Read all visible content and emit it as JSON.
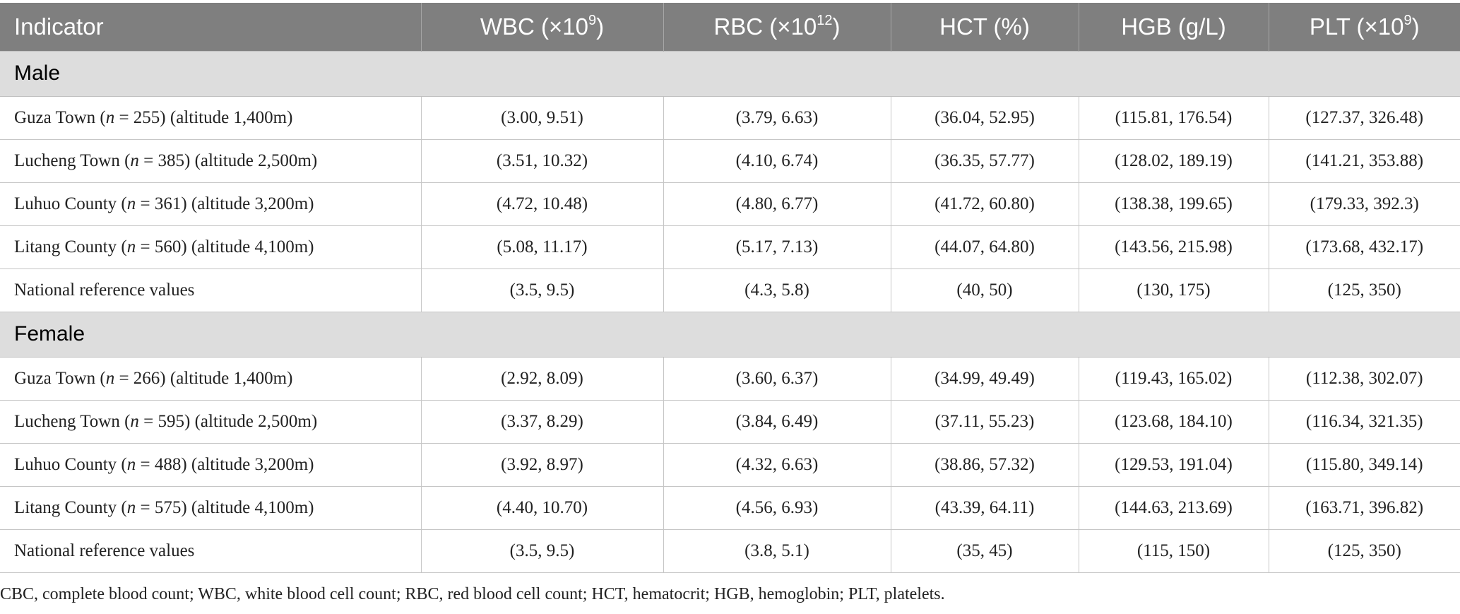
{
  "table": {
    "headers": {
      "indicator": "Indicator",
      "wbc_text": "WBC (×10",
      "wbc_sup": "9",
      "wbc_end": ")",
      "rbc_text": "RBC (×10",
      "rbc_sup": "12",
      "rbc_end": ")",
      "hct": "HCT (%)",
      "hgb": "HGB (g/L)",
      "plt_text": "PLT (×10",
      "plt_sup": "9",
      "plt_end": ")"
    },
    "sections": [
      {
        "label": "Male",
        "rows": [
          {
            "place": "Guza Town (",
            "n": "n",
            "rest": " = 255) (altitude 1,400m)",
            "wbc": "(3.00, 9.51)",
            "rbc": "(3.79, 6.63)",
            "hct": "(36.04, 52.95)",
            "hgb": "(115.81, 176.54)",
            "plt": "(127.37, 326.48)"
          },
          {
            "place": "Lucheng Town (",
            "n": "n",
            "rest": " = 385) (altitude 2,500m)",
            "wbc": "(3.51, 10.32)",
            "rbc": "(4.10, 6.74)",
            "hct": "(36.35, 57.77)",
            "hgb": "(128.02, 189.19)",
            "plt": "(141.21, 353.88)"
          },
          {
            "place": "Luhuo County (",
            "n": "n",
            "rest": " = 361) (altitude 3,200m)",
            "wbc": "(4.72, 10.48)",
            "rbc": "(4.80, 6.77)",
            "hct": "(41.72, 60.80)",
            "hgb": "(138.38, 199.65)",
            "plt": "(179.33, 392.3)"
          },
          {
            "place": "Litang County (",
            "n": "n",
            "rest": " = 560) (altitude 4,100m)",
            "wbc": "(5.08, 11.17)",
            "rbc": "(5.17, 7.13)",
            "hct": "(44.07, 64.80)",
            "hgb": "(143.56, 215.98)",
            "plt": "(173.68, 432.17)"
          },
          {
            "place": "National reference values",
            "n": "",
            "rest": "",
            "wbc": "(3.5, 9.5)",
            "rbc": "(4.3, 5.8)",
            "hct": "(40, 50)",
            "hgb": "(130, 175)",
            "plt": "(125, 350)"
          }
        ]
      },
      {
        "label": "Female",
        "rows": [
          {
            "place": "Guza Town (",
            "n": "n",
            "rest": " = 266) (altitude 1,400m)",
            "wbc": "(2.92, 8.09)",
            "rbc": "(3.60, 6.37)",
            "hct": "(34.99, 49.49)",
            "hgb": "(119.43, 165.02)",
            "plt": "(112.38, 302.07)"
          },
          {
            "place": "Lucheng Town (",
            "n": "n",
            "rest": " = 595) (altitude 2,500m)",
            "wbc": "(3.37, 8.29)",
            "rbc": "(3.84, 6.49)",
            "hct": "(37.11, 55.23)",
            "hgb": "(123.68, 184.10)",
            "plt": "(116.34, 321.35)"
          },
          {
            "place": "Luhuo County (",
            "n": "n",
            "rest": " = 488) (altitude 3,200m)",
            "wbc": "(3.92, 8.97)",
            "rbc": "(4.32, 6.63)",
            "hct": "(38.86, 57.32)",
            "hgb": "(129.53, 191.04)",
            "plt": "(115.80, 349.14)"
          },
          {
            "place": "Litang County (",
            "n": "n",
            "rest": " = 575) (altitude 4,100m)",
            "wbc": "(4.40, 10.70)",
            "rbc": "(4.56, 6.93)",
            "hct": "(43.39, 64.11)",
            "hgb": "(144.63, 213.69)",
            "plt": "(163.71, 396.82)"
          },
          {
            "place": "National reference values",
            "n": "",
            "rest": "",
            "wbc": "(3.5, 9.5)",
            "rbc": "(3.8, 5.1)",
            "hct": "(35, 45)",
            "hgb": "(115, 150)",
            "plt": "(125, 350)"
          }
        ]
      }
    ]
  },
  "footnote": "CBC, complete blood count; WBC, white blood cell count; RBC, red blood cell count; HCT, hematocrit; HGB, hemoglobin; PLT, platelets."
}
